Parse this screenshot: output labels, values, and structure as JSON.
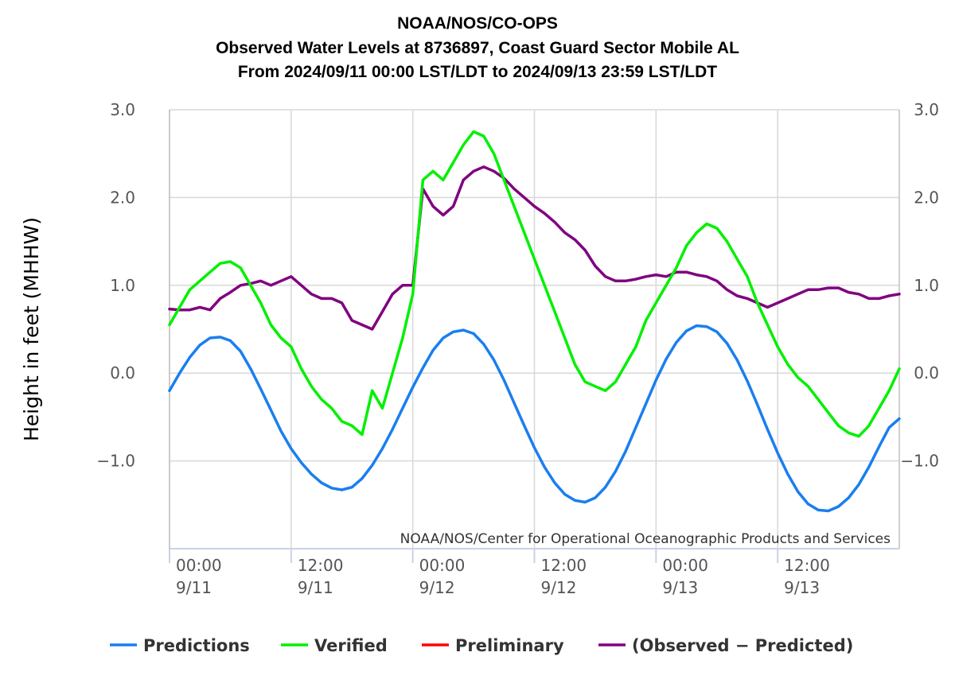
{
  "chart_data": {
    "type": "line",
    "title": [
      "NOAA/NOS/CO-OPS",
      "Observed Water Levels at 8736897, Coast Guard Sector Mobile AL",
      "From 2024/09/11 00:00 LST/LDT to 2024/09/13 23:59 LST/LDT"
    ],
    "ylabel": "Height in feet (MHHW)",
    "xlabel": "",
    "ylim": [
      -2.0,
      3.0
    ],
    "xlim_hours": [
      0,
      72
    ],
    "y_ticks": [
      {
        "value": 3.0,
        "label": "3.0"
      },
      {
        "value": 2.0,
        "label": "2.0"
      },
      {
        "value": 1.0,
        "label": "1.0"
      },
      {
        "value": 0.0,
        "label": "0.0"
      },
      {
        "value": -1.0,
        "label": "−1.0"
      }
    ],
    "x_ticks": [
      {
        "hour": 0,
        "time": "00:00",
        "date": "9/11"
      },
      {
        "hour": 12,
        "time": "12:00",
        "date": "9/11"
      },
      {
        "hour": 24,
        "time": "00:00",
        "date": "9/12"
      },
      {
        "hour": 36,
        "time": "12:00",
        "date": "9/12"
      },
      {
        "hour": 48,
        "time": "00:00",
        "date": "9/13"
      },
      {
        "hour": 60,
        "time": "12:00",
        "date": "9/13"
      }
    ],
    "grid": true,
    "legend_position": "bottom",
    "credit": "NOAA/NOS/Center for Operational Oceanographic Products and Services",
    "series": [
      {
        "name": "Predictions",
        "color": "#1a7ef0",
        "x": [
          0,
          1,
          2,
          3,
          4,
          5,
          6,
          7,
          8,
          9,
          10,
          11,
          12,
          13,
          14,
          15,
          16,
          17,
          18,
          19,
          20,
          21,
          22,
          23,
          24,
          25,
          26,
          27,
          28,
          29,
          30,
          31,
          32,
          33,
          34,
          35,
          36,
          37,
          38,
          39,
          40,
          41,
          42,
          43,
          44,
          45,
          46,
          47,
          48,
          49,
          50,
          51,
          52,
          53,
          54,
          55,
          56,
          57,
          58,
          59,
          60,
          61,
          62,
          63,
          64,
          65,
          66,
          67,
          68,
          69,
          70,
          71,
          72
        ],
        "values": [
          -0.2,
          0.0,
          0.18,
          0.32,
          0.4,
          0.41,
          0.37,
          0.25,
          0.05,
          -0.18,
          -0.42,
          -0.66,
          -0.86,
          -1.02,
          -1.15,
          -1.25,
          -1.31,
          -1.33,
          -1.3,
          -1.2,
          -1.05,
          -0.86,
          -0.64,
          -0.4,
          -0.16,
          0.06,
          0.26,
          0.4,
          0.47,
          0.49,
          0.45,
          0.33,
          0.15,
          -0.08,
          -0.34,
          -0.6,
          -0.85,
          -1.07,
          -1.25,
          -1.38,
          -1.45,
          -1.47,
          -1.42,
          -1.3,
          -1.12,
          -0.89,
          -0.62,
          -0.35,
          -0.08,
          0.16,
          0.35,
          0.48,
          0.54,
          0.53,
          0.47,
          0.34,
          0.15,
          -0.09,
          -0.36,
          -0.64,
          -0.91,
          -1.15,
          -1.35,
          -1.49,
          -1.56,
          -1.57,
          -1.52,
          -1.42,
          -1.27,
          -1.07,
          -0.84,
          -0.62,
          -0.52
        ]
      },
      {
        "name": "Verified",
        "color": "#00f000",
        "x": [
          0,
          1,
          2,
          3,
          4,
          5,
          6,
          7,
          8,
          9,
          10,
          11,
          12,
          13,
          14,
          15,
          16,
          17,
          18,
          19,
          20,
          21,
          22,
          23,
          24,
          25,
          26,
          27,
          28,
          29,
          30,
          31,
          32,
          33,
          34,
          35,
          36,
          37,
          38,
          39,
          40,
          41,
          42,
          43,
          44,
          45,
          46,
          47,
          48,
          49,
          50,
          51,
          52,
          53,
          54,
          55,
          56,
          57,
          58,
          59,
          60,
          61,
          62,
          63,
          64,
          65,
          66,
          67,
          68,
          69,
          70,
          71,
          72
        ],
        "values": [
          0.55,
          0.75,
          0.95,
          1.05,
          1.15,
          1.25,
          1.27,
          1.2,
          1.0,
          0.8,
          0.55,
          0.4,
          0.3,
          0.05,
          -0.15,
          -0.3,
          -0.4,
          -0.55,
          -0.6,
          -0.7,
          -0.2,
          -0.4,
          0.0,
          0.4,
          0.9,
          2.2,
          2.3,
          2.2,
          2.4,
          2.6,
          2.75,
          2.7,
          2.5,
          2.2,
          1.9,
          1.6,
          1.3,
          1.0,
          0.7,
          0.4,
          0.1,
          -0.1,
          -0.15,
          -0.2,
          -0.1,
          0.1,
          0.3,
          0.6,
          0.8,
          1.0,
          1.2,
          1.45,
          1.6,
          1.7,
          1.65,
          1.5,
          1.3,
          1.1,
          0.8,
          0.55,
          0.3,
          0.1,
          -0.05,
          -0.15,
          -0.3,
          -0.45,
          -0.6,
          -0.68,
          -0.72,
          -0.6,
          -0.4,
          -0.2,
          0.05
        ]
      },
      {
        "name": "Preliminary",
        "color": "#ff0000",
        "x": [],
        "values": []
      },
      {
        "name": "(Observed − Predicted)",
        "color": "#800080",
        "x": [
          0,
          1,
          2,
          3,
          4,
          5,
          6,
          7,
          8,
          9,
          10,
          11,
          12,
          13,
          14,
          15,
          16,
          17,
          18,
          19,
          20,
          21,
          22,
          23,
          24,
          25,
          26,
          27,
          28,
          29,
          30,
          31,
          32,
          33,
          34,
          35,
          36,
          37,
          38,
          39,
          40,
          41,
          42,
          43,
          44,
          45,
          46,
          47,
          48,
          49,
          50,
          51,
          52,
          53,
          54,
          55,
          56,
          57,
          58,
          59,
          60,
          61,
          62,
          63,
          64,
          65,
          66,
          67,
          68,
          69,
          70,
          71,
          72
        ],
        "values": [
          0.73,
          0.72,
          0.72,
          0.75,
          0.72,
          0.85,
          0.92,
          1.0,
          1.02,
          1.05,
          1.0,
          1.05,
          1.1,
          1.0,
          0.9,
          0.85,
          0.85,
          0.8,
          0.6,
          0.55,
          0.5,
          0.7,
          0.9,
          1.0,
          1.0,
          2.1,
          1.9,
          1.8,
          1.9,
          2.2,
          2.3,
          2.35,
          2.3,
          2.22,
          2.1,
          2.0,
          1.9,
          1.82,
          1.72,
          1.6,
          1.52,
          1.4,
          1.22,
          1.1,
          1.05,
          1.05,
          1.07,
          1.1,
          1.12,
          1.1,
          1.15,
          1.15,
          1.12,
          1.1,
          1.05,
          0.95,
          0.88,
          0.85,
          0.8,
          0.75,
          0.8,
          0.85,
          0.9,
          0.95,
          0.95,
          0.97,
          0.97,
          0.92,
          0.9,
          0.85,
          0.85,
          0.88,
          0.9
        ]
      }
    ]
  }
}
